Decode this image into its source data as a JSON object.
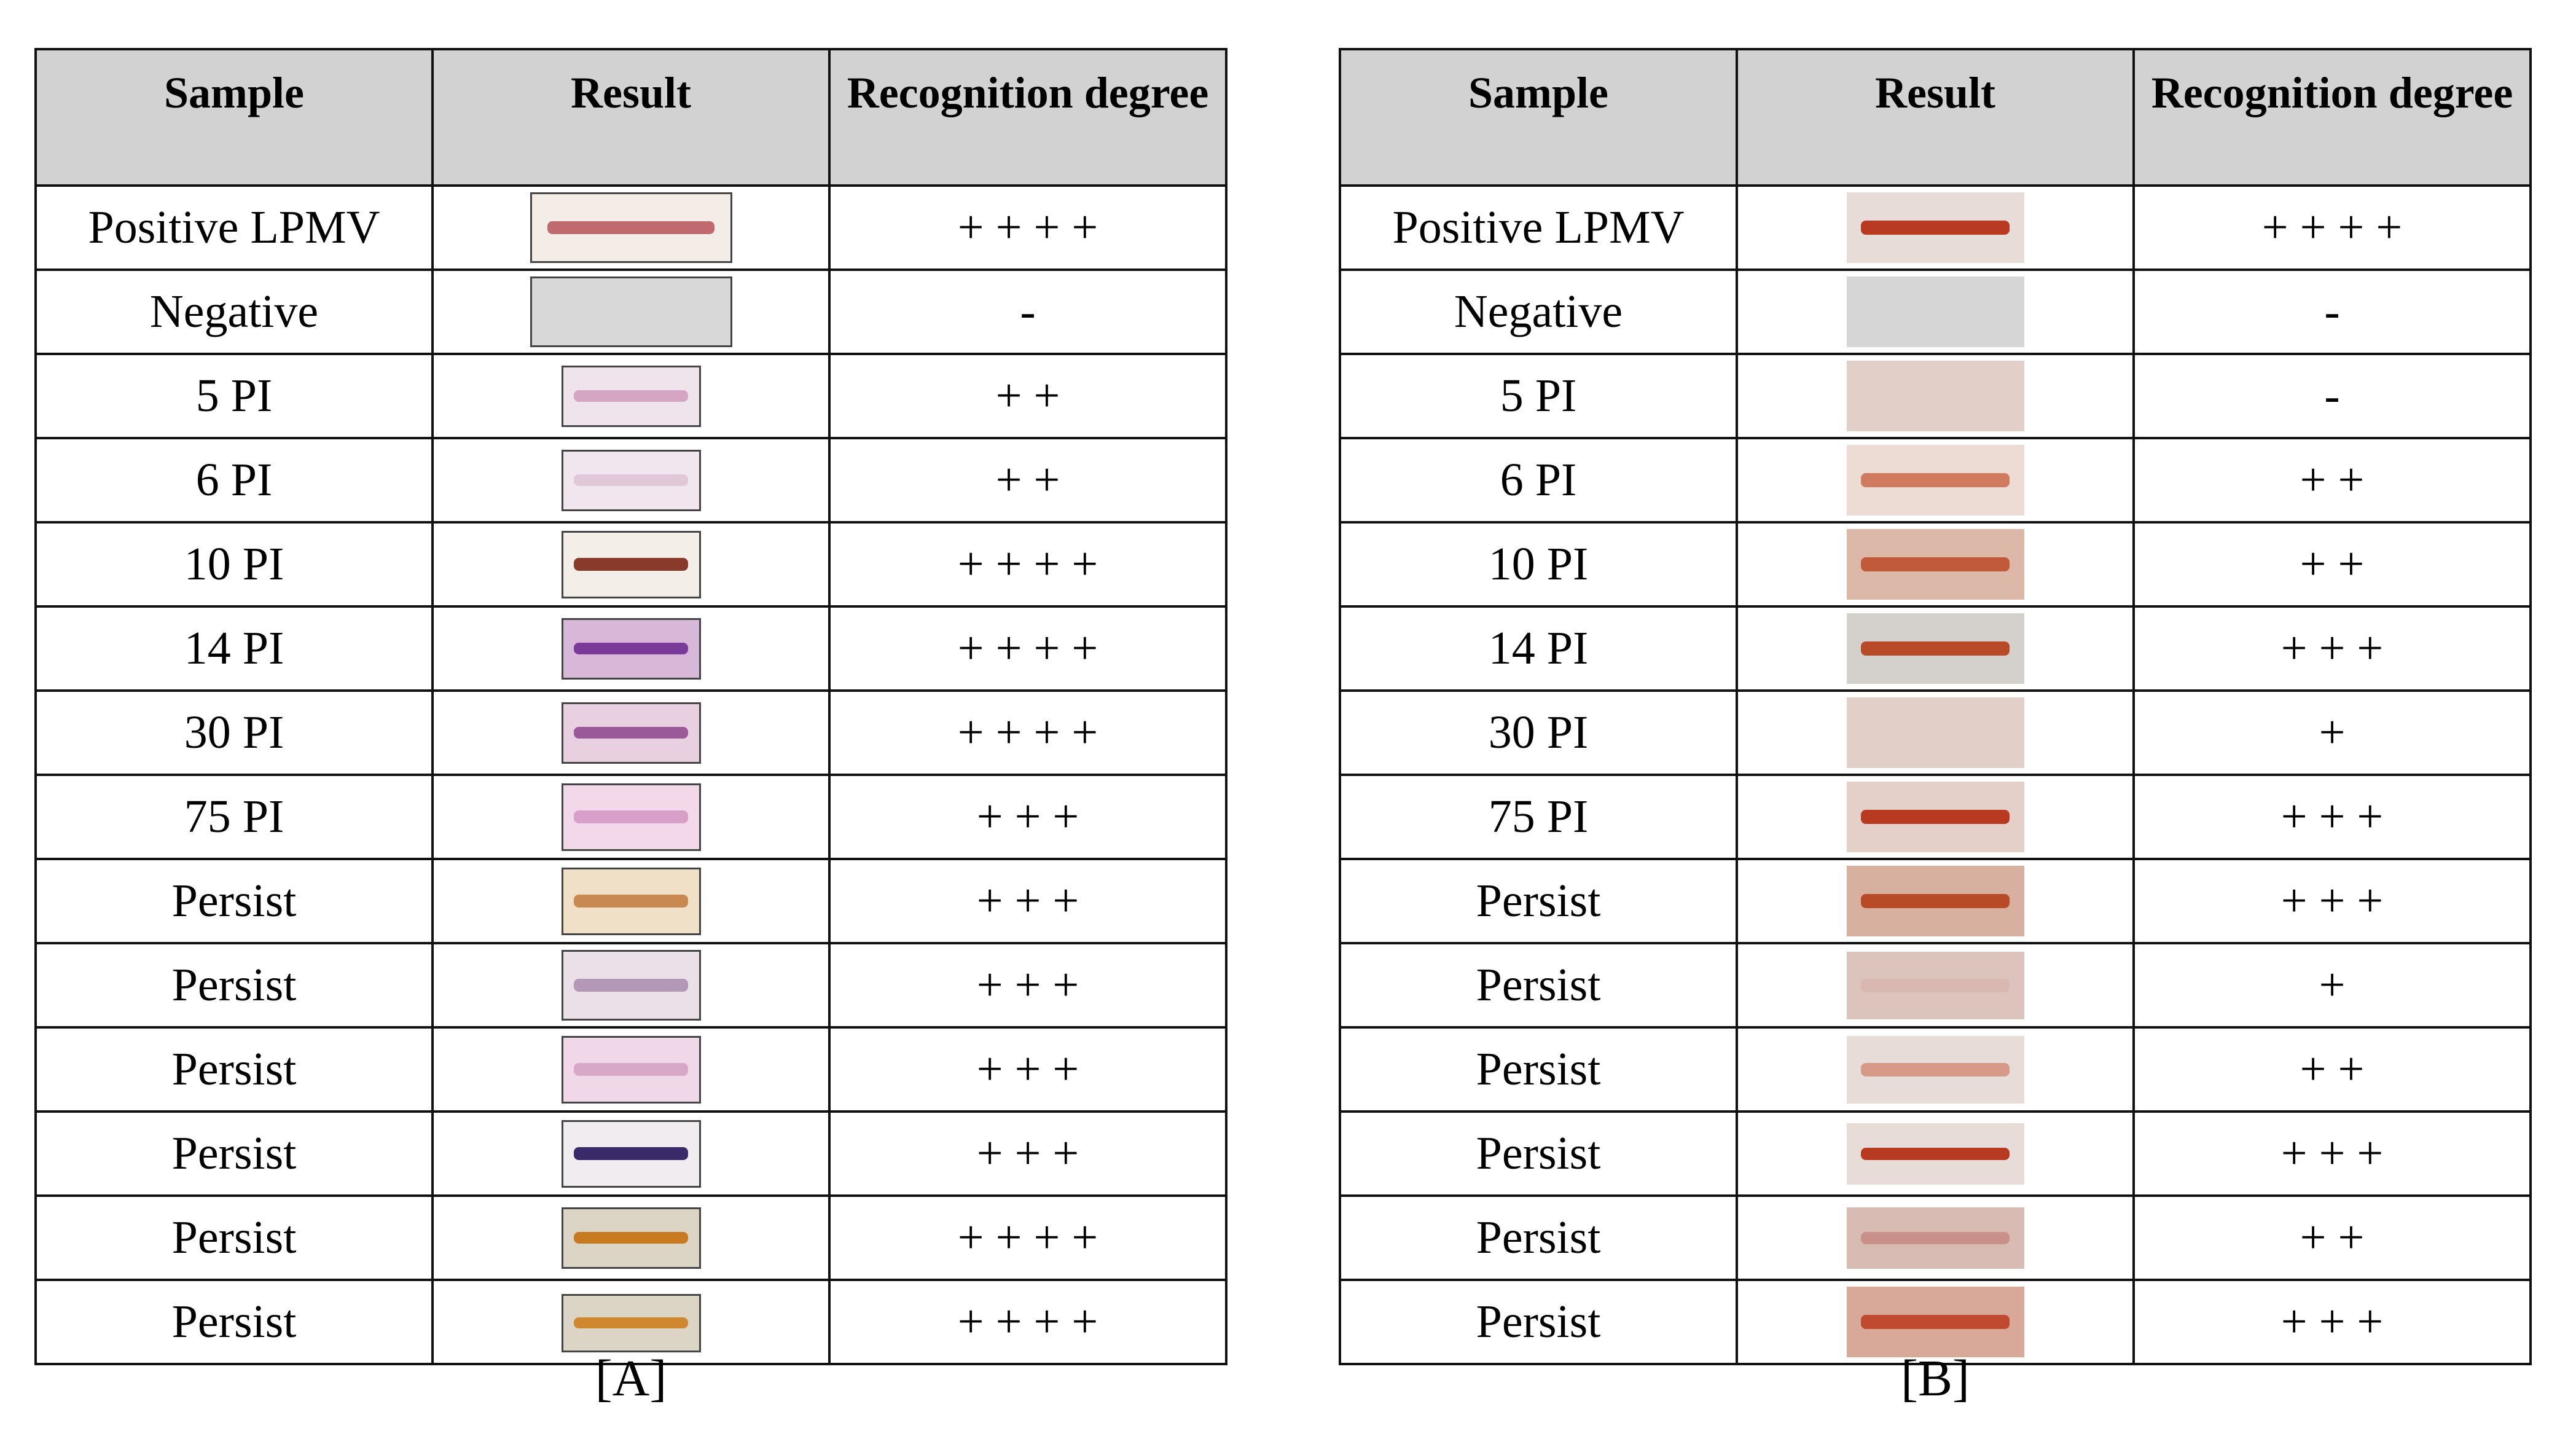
{
  "tables": [
    {
      "headers": [
        "Sample",
        "Result",
        "Recognition degree"
      ],
      "rows": [
        [
          "Positive LPMV",
          "+ + + +"
        ],
        [
          "Negative",
          "-"
        ],
        [
          "5 PI",
          "+ +"
        ],
        [
          "6 PI",
          "+ +"
        ],
        [
          "10 PI",
          "+ + + +"
        ],
        [
          "14 PI",
          "+ + + +"
        ],
        [
          "30 PI",
          "+ + + +"
        ],
        [
          "75 PI",
          "+ + +"
        ],
        [
          "Persist",
          "+ + +"
        ],
        [
          "Persist",
          "+ + +"
        ],
        [
          "Persist",
          "+ + +"
        ],
        [
          "Persist",
          "+ + +"
        ],
        [
          "Persist",
          "+ + + +"
        ],
        [
          "Persist",
          "+ + + +"
        ]
      ],
      "caption": "[A]"
    },
    {
      "headers": [
        "Sample",
        "Result",
        "Recognition degree"
      ],
      "rows": [
        [
          "Positive LPMV",
          "+ + + +"
        ],
        [
          "Negative",
          "-"
        ],
        [
          "5 PI",
          "-"
        ],
        [
          "6 PI",
          "+ +"
        ],
        [
          "10 PI",
          "+ +"
        ],
        [
          "14 PI",
          "+ + +"
        ],
        [
          "30 PI",
          "+"
        ],
        [
          "75 PI",
          "+ + +"
        ],
        [
          "Persist",
          "+ + +"
        ],
        [
          "Persist",
          "+"
        ],
        [
          "Persist",
          "+ +"
        ],
        [
          "Persist",
          "+ + +"
        ],
        [
          "Persist",
          "+ +"
        ],
        [
          "Persist",
          "+ + +"
        ]
      ],
      "caption": "[B]"
    }
  ]
}
